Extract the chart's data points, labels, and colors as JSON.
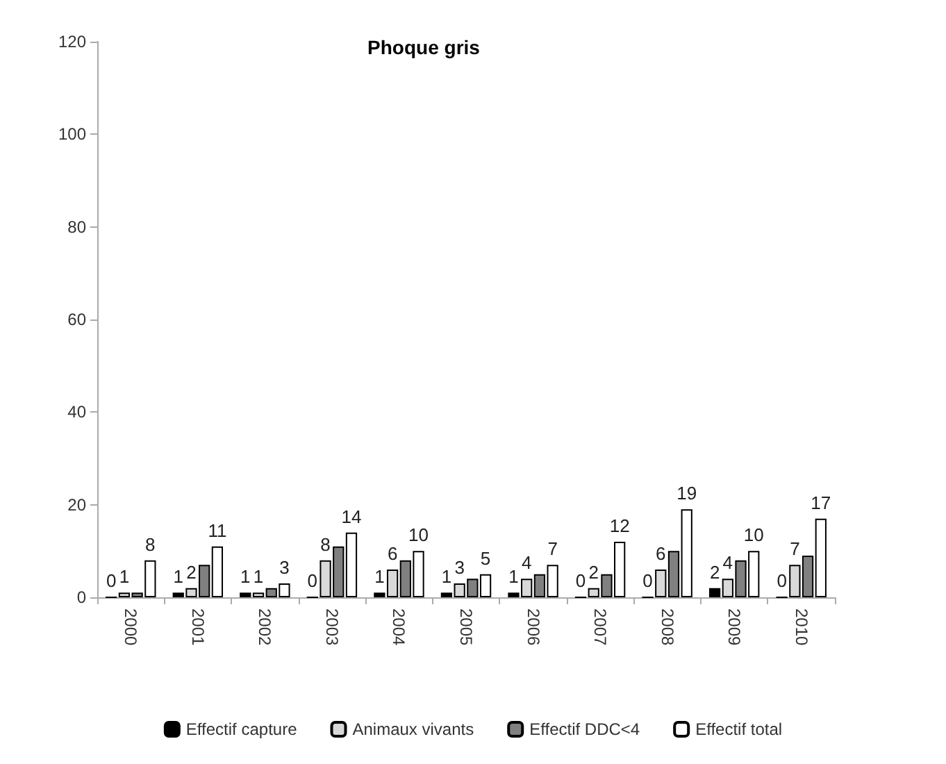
{
  "chart_data": {
    "type": "bar",
    "title": "Phoque gris",
    "categories": [
      "2000",
      "2001",
      "2002",
      "2003",
      "2004",
      "2005",
      "2006",
      "2007",
      "2008",
      "2009",
      "2010"
    ],
    "series": [
      {
        "name": "Effectif capture",
        "color": "#000000",
        "values": [
          0,
          1,
          1,
          0,
          1,
          1,
          1,
          0,
          0,
          2,
          0
        ],
        "value_labels": [
          "0",
          "1",
          "1",
          "0",
          "1",
          "1",
          "1",
          "0",
          "0",
          "2",
          "0"
        ]
      },
      {
        "name": "Animaux vivants",
        "color": "#d9d9d9",
        "values": [
          1,
          2,
          1,
          8,
          6,
          3,
          4,
          2,
          6,
          4,
          7
        ],
        "value_labels": [
          "1",
          "2",
          "1",
          "8",
          "6",
          "3",
          "4",
          "2",
          "6",
          "4",
          "7"
        ]
      },
      {
        "name": "Effectif DDC<4",
        "color": "#808080",
        "values": [
          1,
          7,
          2,
          11,
          8,
          4,
          5,
          5,
          10,
          8,
          9
        ]
      },
      {
        "name": "Effectif total",
        "color": "#ffffff",
        "values": [
          8,
          11,
          3,
          14,
          10,
          5,
          7,
          12,
          19,
          10,
          17
        ],
        "value_labels": [
          "8",
          "11",
          "3",
          "14",
          "10",
          "5",
          "7",
          "12",
          "19",
          "10",
          "17"
        ]
      }
    ],
    "ylim": [
      0,
      120
    ],
    "yticks": [
      0,
      20,
      40,
      60,
      80,
      100,
      120
    ],
    "grid": false,
    "legend": "bottom"
  }
}
